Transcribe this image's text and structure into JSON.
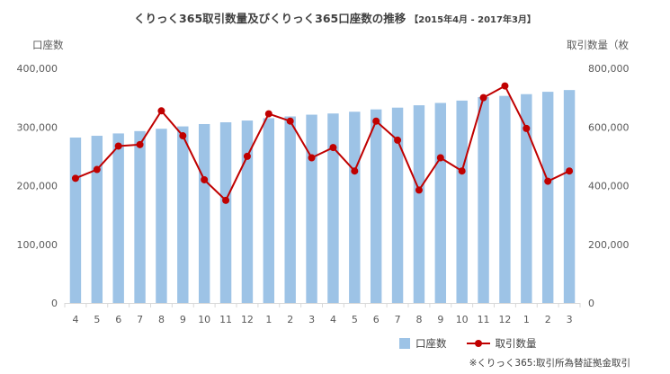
{
  "chart_data": {
    "type": "bar+line",
    "title": "くりっく365取引数量及びくりっく365口座数の推移",
    "subtitle": "【2015年4月 - 2017年3月】",
    "left_axis_label": "口座数",
    "right_axis_label": "取引数量（枚",
    "categories": [
      "4",
      "5",
      "6",
      "7",
      "8",
      "9",
      "10",
      "11",
      "12",
      "1",
      "2",
      "3",
      "4",
      "5",
      "6",
      "7",
      "8",
      "9",
      "10",
      "11",
      "12",
      "1",
      "2",
      "3"
    ],
    "series": [
      {
        "name": "口座数",
        "kind": "bar",
        "axis": "left",
        "color": "#9dc3e6",
        "values": [
          282000,
          285000,
          289000,
          293000,
          297000,
          301000,
          305000,
          308000,
          311000,
          315000,
          318000,
          321000,
          323000,
          326000,
          330000,
          333000,
          337000,
          341000,
          345000,
          351000,
          353000,
          356000,
          360000,
          363000
        ]
      },
      {
        "name": "取引数量",
        "kind": "line",
        "axis": "right",
        "color": "#c00000",
        "values": [
          425000,
          455000,
          535000,
          540000,
          655000,
          570000,
          420000,
          350000,
          500000,
          645000,
          620000,
          495000,
          530000,
          450000,
          620000,
          555000,
          385000,
          495000,
          450000,
          700000,
          740000,
          595000,
          415000,
          450000
        ]
      }
    ],
    "y_left": {
      "min": 0,
      "max": 400000,
      "ticks": [
        "0",
        "100,000",
        "200,000",
        "300,000",
        "400,000"
      ]
    },
    "y_right": {
      "min": 0,
      "max": 800000,
      "ticks": [
        "0",
        "200,000",
        "400,000",
        "600,000",
        "800,000"
      ]
    }
  },
  "legend": {
    "bar_label": "口座数",
    "line_label": "取引数量"
  },
  "source": "※くりっく365:取引所為替証拠金取引"
}
